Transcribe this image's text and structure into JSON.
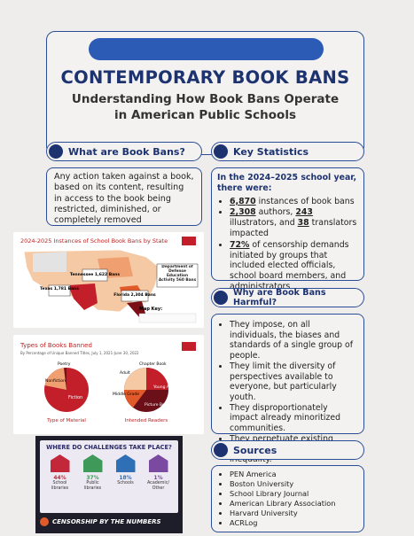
{
  "header": {
    "title": "CONTEMPORARY BOOK BANS",
    "subtitle": "Understanding How Book Bans Operate in American Public Schools"
  },
  "what": {
    "heading": "What are Book Bans?",
    "text": "Any action taken against a book, based on its content, resulting in access to the book being restricted, diminished, or completely removed"
  },
  "stats": {
    "heading": "Key Statistics",
    "intro": "In the 2024–2025 school year, there were:",
    "items": [
      [
        {
          "text": "6,870",
          "bold": true
        },
        {
          "text": " instances of book bans",
          "bold": false
        }
      ],
      [
        {
          "text": "2,308",
          "bold": true
        },
        {
          "text": " authors, ",
          "bold": false
        },
        {
          "text": "243",
          "bold": true
        },
        {
          "text": " illustrators, and ",
          "bold": false
        },
        {
          "text": "38",
          "bold": true
        },
        {
          "text": " translators impacted",
          "bold": false
        }
      ],
      [
        {
          "text": "72%",
          "bold": true
        },
        {
          "text": " of censorship demands initiated by groups that included elected officials, school board members, and administrators",
          "bold": false
        }
      ]
    ]
  },
  "map": {
    "title": "2024-2025 Instances of School Book Bans by State",
    "callouts": [
      "Texas 1,781 Bans",
      "Tennessee 1,622 Bans",
      "Florida 2,304 Bans",
      "Department of Defense Education Activity 560 Bans"
    ],
    "key": "Map Key:"
  },
  "pies": {
    "title": "Types of Books Banned",
    "subtitle": "By Percentage of Unique Banned Titles, July 1, 2021-June 30, 2022",
    "left_caption": "Type of Material",
    "right_caption": "Intended Readers",
    "left_labels": [
      "Fiction",
      "Nonfiction",
      "Poetry"
    ],
    "right_labels": [
      "Young Adult",
      "Picture Book",
      "Chapter Book",
      "Middle Grade",
      "Adult"
    ]
  },
  "infographic": {
    "title": "WHERE DO CHALLENGES TAKE PLACE?",
    "items": [
      {
        "pct": "44%",
        "label": "School libraries"
      },
      {
        "pct": "37%",
        "label": "Public libraries"
      },
      {
        "pct": "18%",
        "label": "Schools"
      },
      {
        "pct": "1%",
        "label": "Academic/ Other"
      }
    ],
    "footer": "CENSORSHIP BY THE NUMBERS"
  },
  "harmful": {
    "heading": "Why are Book Bans Harmful?",
    "items": [
      "They impose, on all individuals, the biases and standards of a single group of people.",
      "They limit the diversity of perspectives available to everyone, but particularly youth.",
      "They disproportionately impact already minoritized communities.",
      "They perpetuate existing systems of structural inequality."
    ]
  },
  "sources": {
    "heading": "Sources",
    "items": [
      "PEN America",
      "Boston University",
      "School Library Journal",
      "American Library Association",
      "Harvard University",
      "ACRLog"
    ]
  }
}
